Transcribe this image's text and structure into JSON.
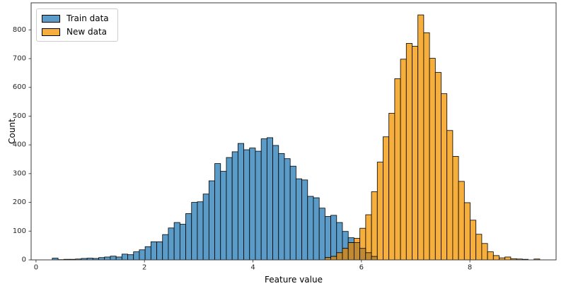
{
  "figure": {
    "x_label": "Feature value",
    "y_label": "Count"
  },
  "legend": {
    "position": "upper left",
    "items": [
      {
        "label": "Train data",
        "color": "#5b9bc8"
      },
      {
        "label": "New data",
        "color": "#f6ae3d"
      }
    ]
  },
  "chart_data": {
    "type": "histogram",
    "title": "",
    "xlabel": "Feature value",
    "ylabel": "Count",
    "xlim": [
      -0.09,
      9.59
    ],
    "ylim": [
      0,
      894
    ],
    "x_ticks": [
      0,
      2,
      4,
      6,
      8
    ],
    "y_ticks": [
      0,
      100,
      200,
      300,
      400,
      500,
      600,
      700,
      800
    ],
    "grid": false,
    "bin_width": 0.107,
    "colors": {
      "train": "#5b9bc8",
      "new": "#f6ae3d",
      "overlap": "#c08a33",
      "bar_edge": "#000000",
      "spine": "#3a3a3a",
      "text": "#262626"
    },
    "series": [
      {
        "name": "Train data",
        "x_start": 0.3,
        "counts": [
          6,
          1,
          2,
          2,
          3,
          5,
          6,
          5,
          8,
          10,
          13,
          10,
          20,
          18,
          28,
          35,
          46,
          63,
          63,
          88,
          111,
          130,
          124,
          161,
          200,
          202,
          229,
          275,
          335,
          308,
          356,
          376,
          405,
          383,
          389,
          378,
          421,
          425,
          398,
          370,
          352,
          326,
          282,
          278,
          221,
          216,
          180,
          151,
          155,
          130,
          99,
          77,
          60,
          40,
          25,
          12
        ]
      },
      {
        "name": "New data",
        "x_start": 5.33,
        "counts": [
          8,
          12,
          25,
          40,
          60,
          75,
          110,
          157,
          237,
          340,
          428,
          510,
          630,
          698,
          753,
          743,
          852,
          790,
          701,
          652,
          578,
          450,
          360,
          273,
          199,
          138,
          89,
          57,
          28,
          15,
          7,
          10,
          4,
          3,
          2,
          0,
          3
        ]
      }
    ]
  }
}
